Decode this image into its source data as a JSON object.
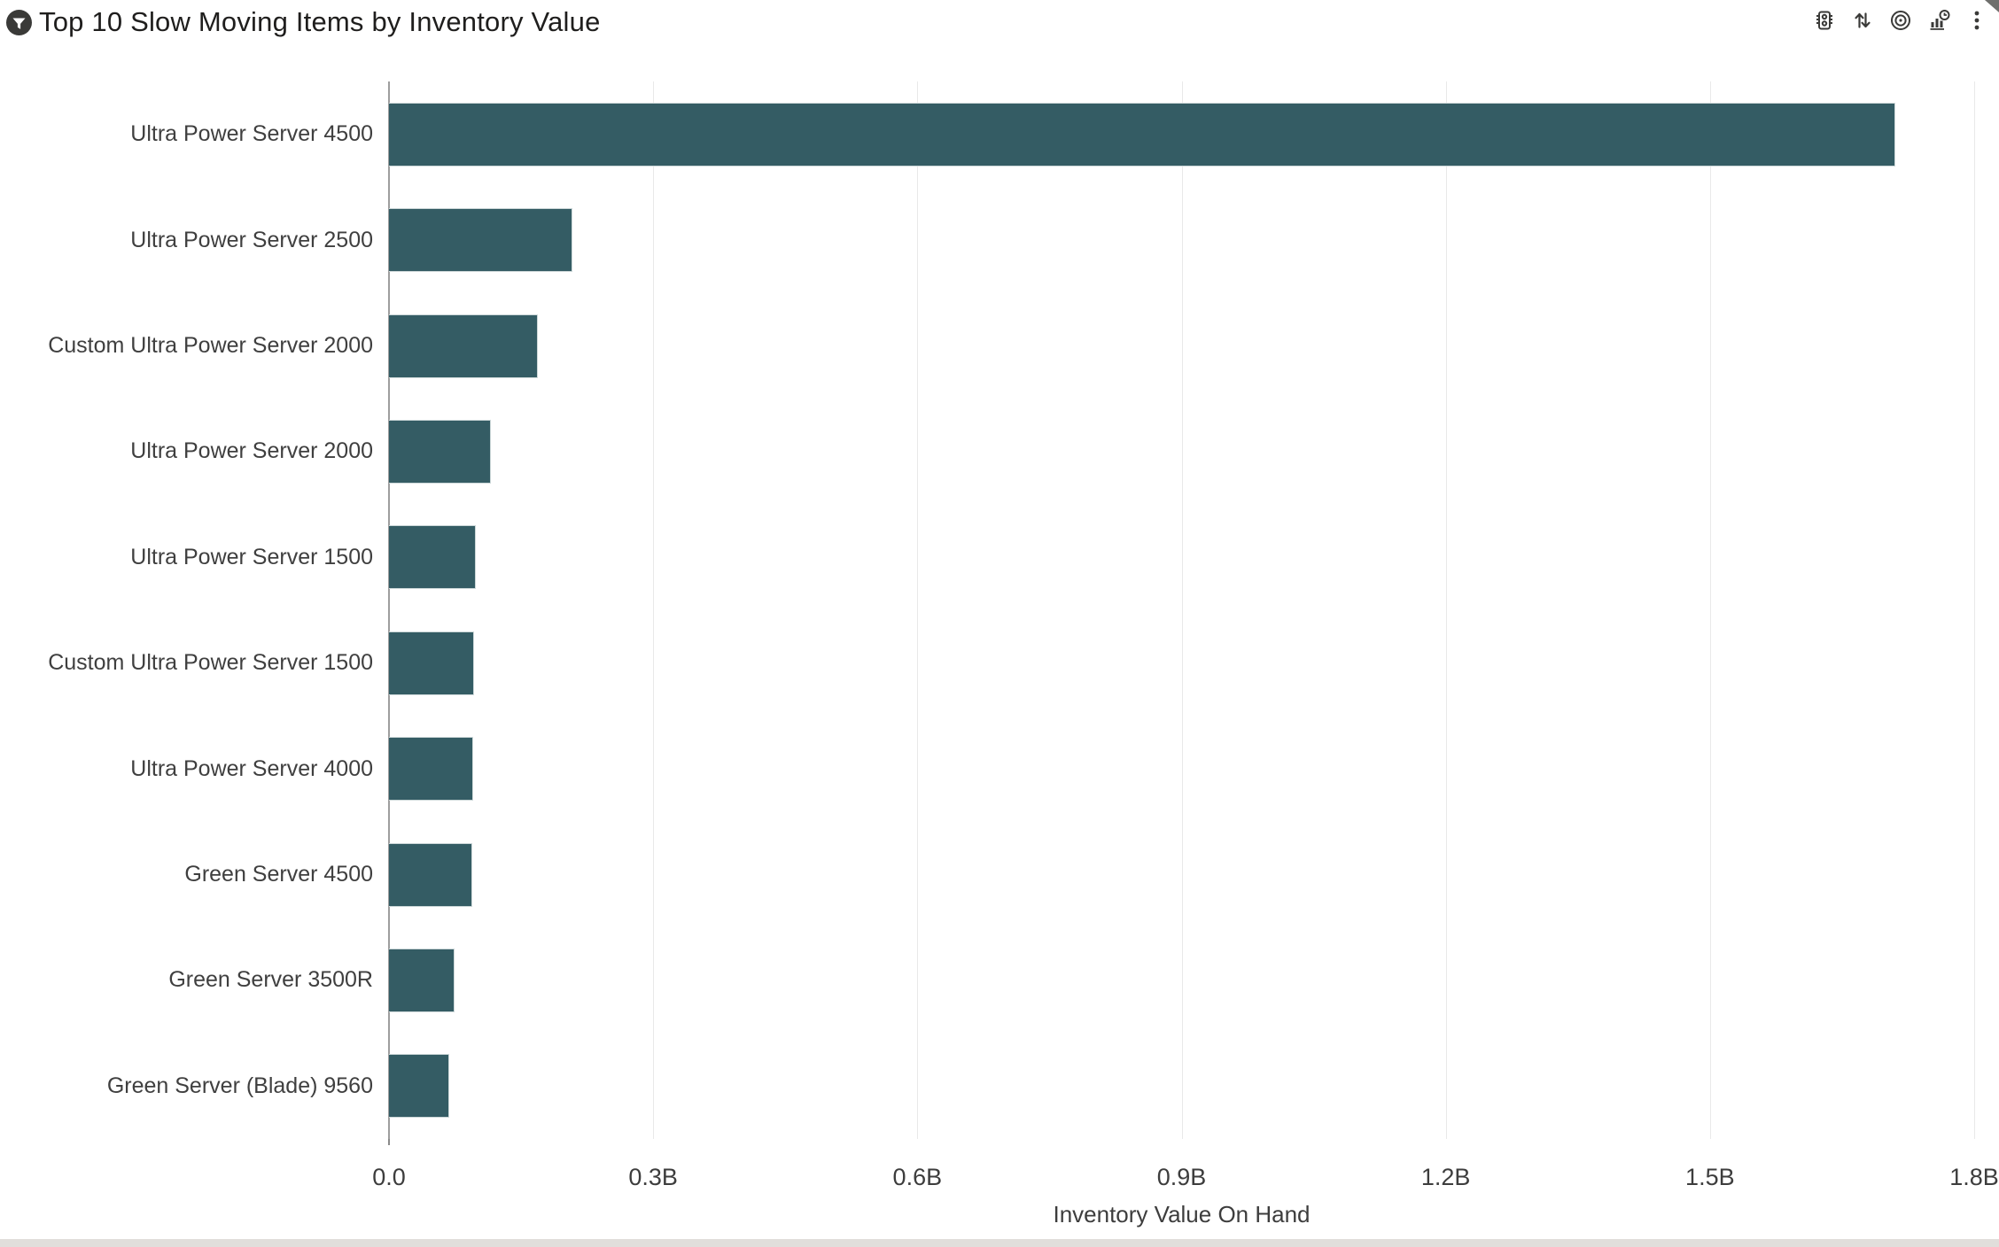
{
  "header": {
    "title": "Top 10 Slow Moving Items by Inventory Value",
    "title_icon": "filter-icon",
    "toolbar_icons": [
      "traffic-light-icon",
      "sort-icon",
      "target-icon",
      "chart-clock-icon",
      "more-options-icon"
    ]
  },
  "chart_data": {
    "type": "bar",
    "orientation": "horizontal",
    "title": "Top 10 Slow Moving Items by Inventory Value",
    "categories": [
      "Ultra Power Server 4500",
      "Ultra Power Server 2500",
      "Custom Ultra Power Server 2000",
      "Ultra Power Server 2000",
      "Ultra Power Server 1500",
      "Custom Ultra Power Server 1500",
      "Ultra Power Server 4000",
      "Green Server 4500",
      "Green Server 3500R",
      "Green Server (Blade) 9560"
    ],
    "values": [
      1.71,
      0.208,
      0.169,
      0.116,
      0.099,
      0.097,
      0.096,
      0.095,
      0.074,
      0.068
    ],
    "value_unit": "billions",
    "xlabel": "Inventory Value On Hand",
    "ylabel": "",
    "xlim": [
      0,
      1.8
    ],
    "xticks": [
      {
        "value": 0.0,
        "label": "0.0"
      },
      {
        "value": 0.3,
        "label": "0.3B"
      },
      {
        "value": 0.6,
        "label": "0.6B"
      },
      {
        "value": 0.9,
        "label": "0.9B"
      },
      {
        "value": 1.2,
        "label": "1.2B"
      },
      {
        "value": 1.5,
        "label": "1.5B"
      },
      {
        "value": 1.8,
        "label": "1.8B"
      }
    ],
    "grid": true,
    "legend": "none",
    "bar_color": "#345c64"
  },
  "colors": {
    "bar": "#345c64",
    "axis_line": "#9e9e9e",
    "gridline": "#e9e9e9",
    "text": "#3f3f3f",
    "title_text": "#1f1e1d",
    "icon": "#3a3a38",
    "scroll_track": "#e1dedb"
  }
}
